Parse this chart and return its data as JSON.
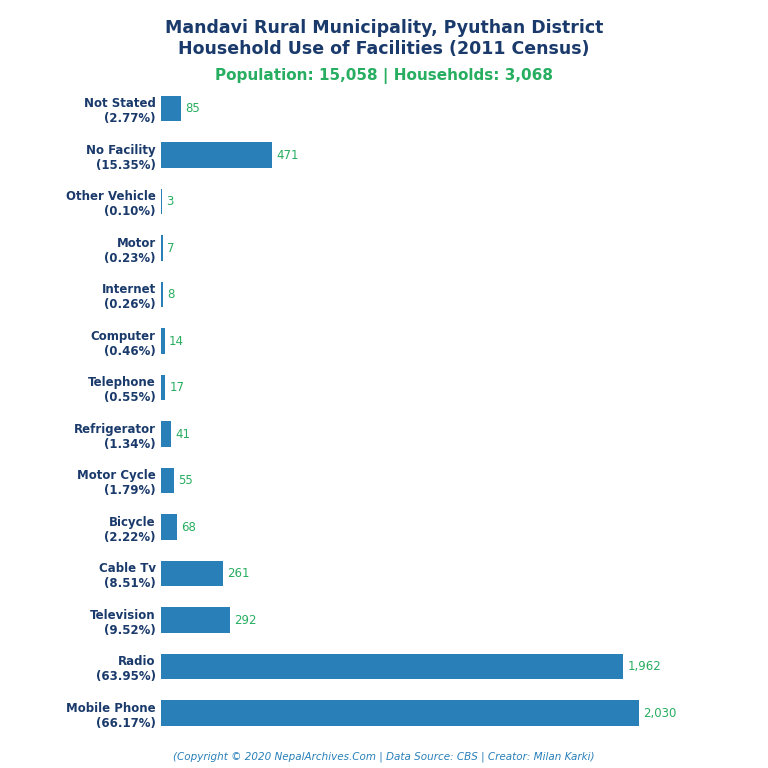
{
  "title_line1": "Mandavi Rural Municipality, Pyuthan District",
  "title_line2": "Household Use of Facilities (2011 Census)",
  "subtitle": "Population: 15,058 | Households: 3,068",
  "footer": "(Copyright © 2020 NepalArchives.Com | Data Source: CBS | Creator: Milan Karki)",
  "categories": [
    "Not Stated\n(2.77%)",
    "No Facility\n(15.35%)",
    "Other Vehicle\n(0.10%)",
    "Motor\n(0.23%)",
    "Internet\n(0.26%)",
    "Computer\n(0.46%)",
    "Telephone\n(0.55%)",
    "Refrigerator\n(1.34%)",
    "Motor Cycle\n(1.79%)",
    "Bicycle\n(2.22%)",
    "Cable Tv\n(8.51%)",
    "Television\n(9.52%)",
    "Radio\n(63.95%)",
    "Mobile Phone\n(66.17%)"
  ],
  "values": [
    85,
    471,
    3,
    7,
    8,
    14,
    17,
    41,
    55,
    68,
    261,
    292,
    1962,
    2030
  ],
  "bar_color": "#2980b9",
  "value_color": "#27ae60",
  "label_color": "#1a3a6b",
  "title_color": "#1a3a6b",
  "subtitle_color": "#27ae60",
  "footer_color": "#2980b9",
  "background_color": "#ffffff",
  "xlim": [
    0,
    2350
  ]
}
